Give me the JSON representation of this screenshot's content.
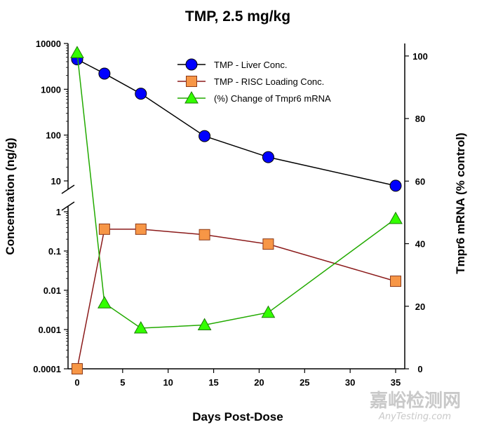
{
  "chart_data": {
    "type": "line",
    "title": "TMP, 2.5 mg/kg",
    "xlabel": "Days Post-Dose",
    "ylabel_left": "Concentration (ng/g)",
    "ylabel_right": "Tmpr6 mRNA (% control)",
    "x_ticks": [
      0,
      5,
      10,
      15,
      20,
      25,
      30,
      35
    ],
    "xlim": [
      -1,
      36
    ],
    "y_left_scale": "log (broken between 1 and 10)",
    "y_left_ticks_upper": [
      "10",
      "100",
      "1000",
      "10000"
    ],
    "y_left_ticks_lower": [
      "0.0001",
      "0.001",
      "0.01",
      "0.1",
      "1"
    ],
    "y_right_ticks": [
      0,
      20,
      40,
      60,
      80,
      100
    ],
    "y_right_lim": [
      0,
      104
    ],
    "legend_position": "top-right",
    "series": [
      {
        "name": "TMP - Liver Conc.",
        "axis": "left",
        "marker": "circle",
        "color": "#0000ff",
        "line_color": "#000000",
        "x": [
          0,
          3,
          7,
          14,
          21,
          35
        ],
        "y": [
          4500,
          2200,
          800,
          95,
          33,
          4.6
        ]
      },
      {
        "name": "TMP - RISC Loading Conc.",
        "axis": "left",
        "marker": "square",
        "color": "#f79646",
        "line_color": "#8b1a1a",
        "x": [
          0,
          3,
          7,
          14,
          21,
          35
        ],
        "y": [
          0.0001,
          0.36,
          0.36,
          0.26,
          0.15,
          0.017
        ]
      },
      {
        "name": "(%) Change of Tmpr6 mRNA",
        "axis": "right",
        "marker": "triangle",
        "color": "#33ff00",
        "line_color": "#22aa00",
        "x": [
          0,
          3,
          7,
          14,
          21,
          35
        ],
        "y": [
          101,
          21,
          13,
          14,
          18,
          48
        ]
      }
    ]
  },
  "watermark": {
    "cn": "嘉峪检测网",
    "en": "AnyTesting.com"
  }
}
